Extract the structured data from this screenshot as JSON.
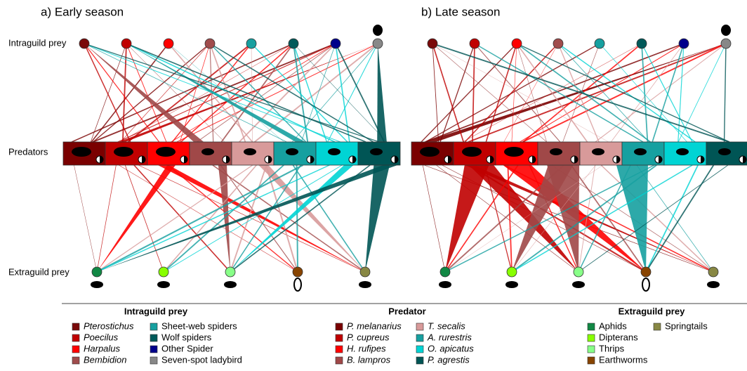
{
  "panels": [
    {
      "title": "a) Early season"
    },
    {
      "title": "b) Late season"
    }
  ],
  "row_labels": [
    "Intraguild prey",
    "Predators",
    "Extraguild prey"
  ],
  "legend": {
    "groups": [
      {
        "title": "Intraguild prey",
        "items": [
          {
            "label": "Pterostichus",
            "color": "#7a0a0a",
            "italic": true
          },
          {
            "label": "Poecilus",
            "color": "#c00000",
            "italic": true
          },
          {
            "label": "Harpalus",
            "color": "#ff0000",
            "italic": true
          },
          {
            "label": "Bembidion",
            "color": "#a04c4c",
            "italic": true
          },
          {
            "label": "Sheet-web spiders",
            "color": "#16a0a0"
          },
          {
            "label": "Wolf spiders",
            "color": "#005a5a"
          },
          {
            "label": "Other Spider",
            "color": "#00008b"
          },
          {
            "label": "Seven-spot ladybird",
            "color": "#888888"
          }
        ]
      },
      {
        "title": "Predator",
        "items": [
          {
            "label": "P. melanarius",
            "color": "#7a0000",
            "italic": true
          },
          {
            "label": "P. cupreus",
            "color": "#c00000",
            "italic": true
          },
          {
            "label": "H. rufipes",
            "color": "#ff0000",
            "italic": true
          },
          {
            "label": "B. lampros",
            "color": "#a04848",
            "italic": true
          },
          {
            "label": "T. secalis",
            "color": "#d89a9a",
            "italic": true
          },
          {
            "label": "A. rurestris",
            "color": "#16a0a0",
            "italic": true
          },
          {
            "label": "O. apicatus",
            "color": "#00d4d4",
            "italic": true
          },
          {
            "label": "P. agrestis",
            "color": "#005555",
            "italic": true
          }
        ]
      },
      {
        "title": "Extraguild prey",
        "items": [
          {
            "label": "Aphids",
            "color": "#118844"
          },
          {
            "label": "Dipterans",
            "color": "#88ff00"
          },
          {
            "label": "Thrips",
            "color": "#88ff88"
          },
          {
            "label": "Earthworms",
            "color": "#884400"
          },
          {
            "label": "Springtails",
            "color": "#888844"
          }
        ]
      }
    ]
  }
}
